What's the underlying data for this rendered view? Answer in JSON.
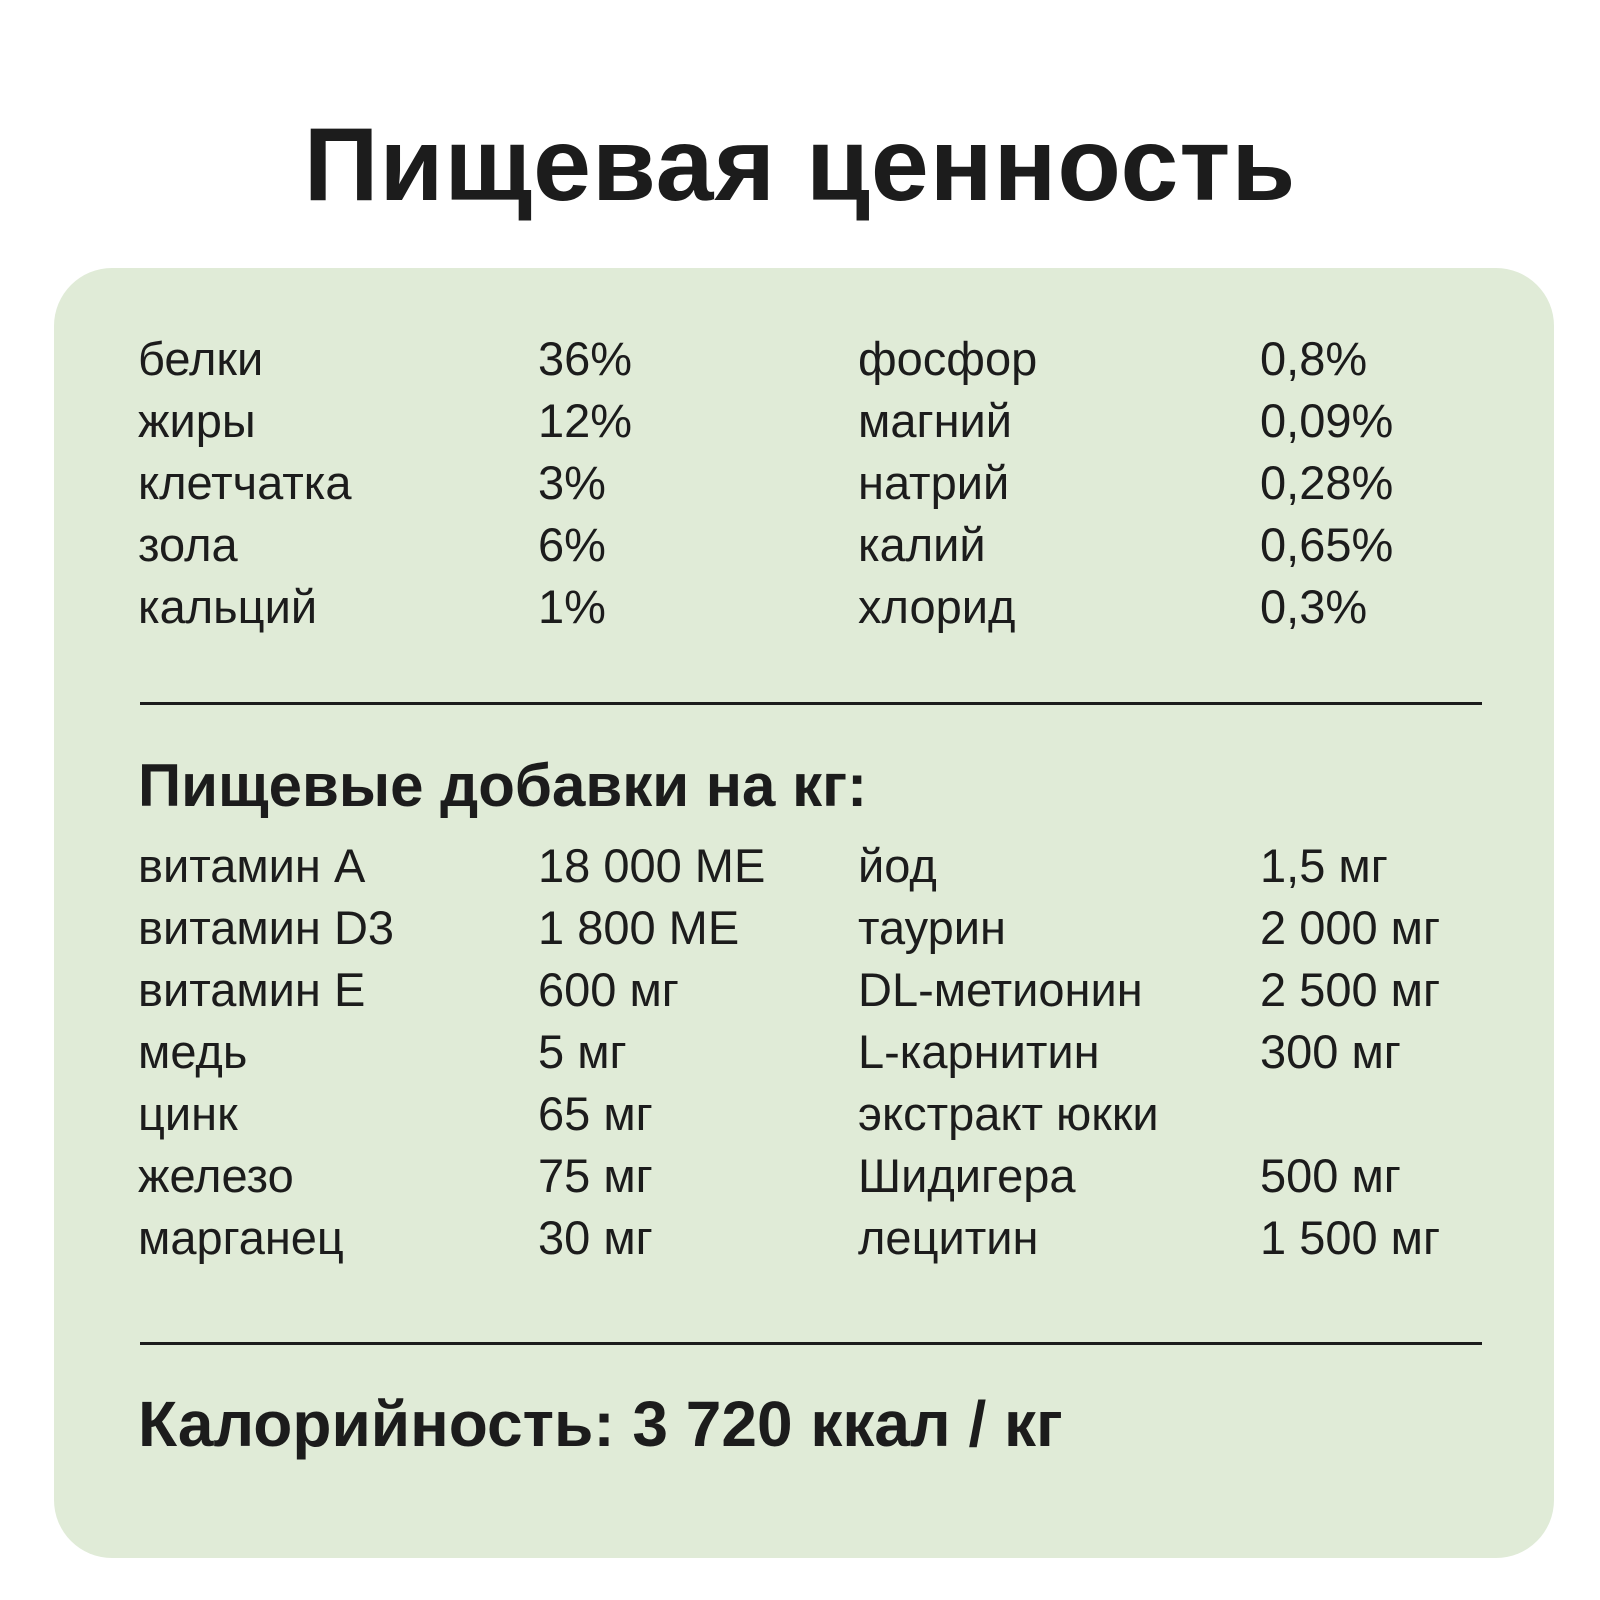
{
  "title": "Пищевая ценность",
  "nutrients": [
    {
      "name": "белки",
      "value": "36%",
      "name2": "фосфор",
      "value2": "0,8%"
    },
    {
      "name": "жиры",
      "value": "12%",
      "name2": "магний",
      "value2": "0,09%"
    },
    {
      "name": "клетчатка",
      "value": "3%",
      "name2": "натрий",
      "value2": "0,28%"
    },
    {
      "name": "зола",
      "value": "6%",
      "name2": "калий",
      "value2": "0,65%"
    },
    {
      "name": "кальций",
      "value": "1%",
      "name2": "хлорид",
      "value2": "0,3%"
    }
  ],
  "additives_title": "Пищевые добавки на кг:",
  "additives": [
    {
      "name": "витамин A",
      "value": "18 000 МЕ",
      "name2": "йод",
      "value2": "1,5 мг"
    },
    {
      "name": "витамин D3",
      "value": "1 800 МЕ",
      "name2": "таурин",
      "value2": "2 000 мг"
    },
    {
      "name": "витамин E",
      "value": "600 мг",
      "name2": "DL-метионин",
      "value2": "2 500 мг"
    },
    {
      "name": "медь",
      "value": "5 мг",
      "name2": "L-карнитин",
      "value2": "300 мг"
    },
    {
      "name": "цинк",
      "value": "65 мг",
      "name2": "экстракт юкки",
      "value2": ""
    },
    {
      "name": "железо",
      "value": "75 мг",
      "name2": "Шидигера",
      "value2": "500 мг"
    },
    {
      "name": "марганец",
      "value": "30 мг",
      "name2": "лецитин",
      "value2": "1 500 мг"
    }
  ],
  "calories": "Калорийность: 3 720 ккал / кг",
  "colors": {
    "card_background": "#e0ebd7",
    "text": "#1c1c1c"
  }
}
